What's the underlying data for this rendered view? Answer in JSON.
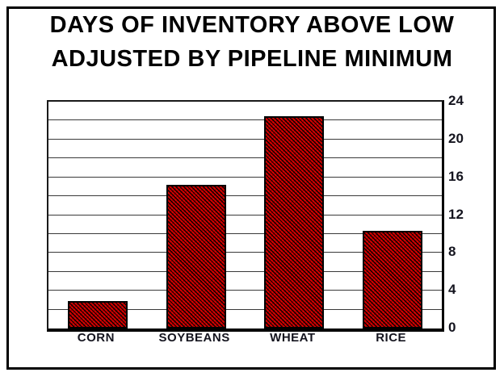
{
  "title": {
    "line1": "DAYS OF INVENTORY ABOVE LOW",
    "line2": "ADJUSTED BY PIPELINE MINIMUM"
  },
  "chart_data": {
    "type": "bar",
    "title": "DAYS OF INVENTORY ABOVE LOW ADJUSTED BY PIPELINE MINIMUM",
    "categories": [
      "CORN",
      "SOYBEANS",
      "WHEAT",
      "RICE"
    ],
    "values": [
      2.9,
      15.2,
      22.5,
      10.3
    ],
    "xlabel": "",
    "ylabel": "",
    "ylim": [
      0,
      24
    ],
    "y_tick_labels": [
      0,
      4,
      8,
      12,
      16,
      20,
      24
    ],
    "grid_step": 2,
    "grid": true,
    "legend": false,
    "y_axis_side": "right",
    "style": {
      "bar_color": "#d60000",
      "hatch_color": "#000000",
      "bar_border_color": "#000000",
      "axis_color": "#000000",
      "label_color": "#14141e",
      "background_color": "#ffffff"
    }
  }
}
